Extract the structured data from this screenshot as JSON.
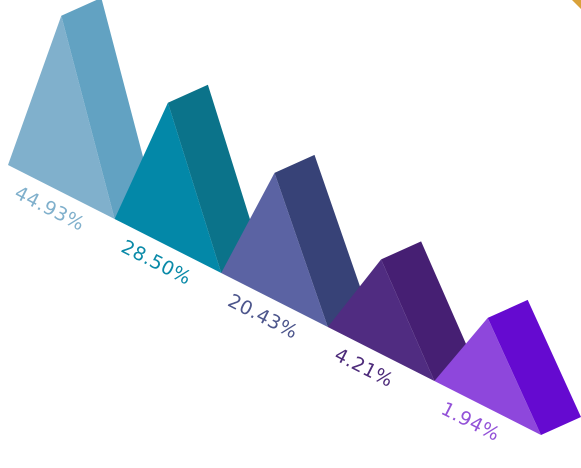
{
  "chart_data": {
    "type": "bar",
    "style": "3d-triangular-pyramid",
    "categories": [
      "",
      "",
      "",
      "",
      ""
    ],
    "values": [
      44.93,
      28.5,
      20.43,
      4.21,
      1.94
    ],
    "labels": [
      "44.93%",
      "28.50%",
      "20.43%",
      "4.21%",
      "1.94%"
    ],
    "unit": "%",
    "colors": [
      {
        "front": "#80b0cc",
        "side": "#62a2c2",
        "label": "#80b0cc"
      },
      {
        "front": "#0388a8",
        "side": "#0b738a",
        "label": "#0a8aa8"
      },
      {
        "front": "#5b63a3",
        "side": "#374277",
        "label": "#4d568c"
      },
      {
        "front": "#502c81",
        "side": "#461f73",
        "label": "#4d2b7a"
      },
      {
        "front": "#8e47dc",
        "side": "#650ad0",
        "label": "#9352d8"
      }
    ]
  },
  "decor": {
    "corner_accent_color": "#d9a23a"
  }
}
